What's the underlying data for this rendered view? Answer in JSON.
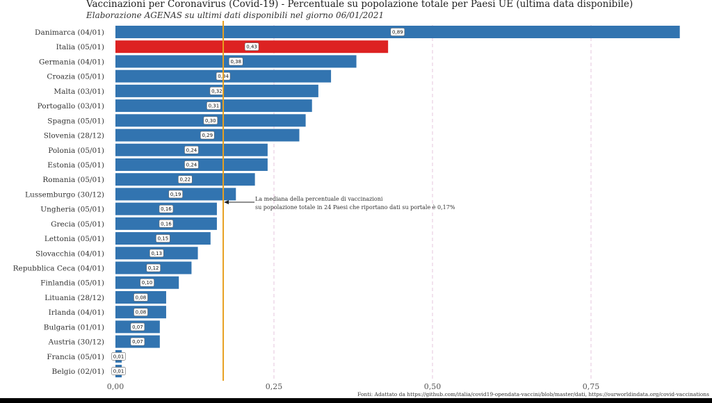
{
  "chart_data": {
    "type": "bar",
    "orientation": "horizontal",
    "title": "Vaccinazioni per Coronavirus (Covid-19) - Percentuale su popolazione totale per Paesi UE (ultima data disponibile)",
    "subtitle": "Elaborazione AGENAS su ultimi dati disponibili nel giorno 06/01/2021",
    "categories": [
      "Danimarca (04/01)",
      "Italia (05/01)",
      "Germania (04/01)",
      "Croazia (05/01)",
      "Malta (03/01)",
      "Portogallo (03/01)",
      "Spagna (05/01)",
      "Slovenia (28/12)",
      "Polonia (05/01)",
      "Estonia (05/01)",
      "Romania (05/01)",
      "Lussemburgo (30/12)",
      "Ungheria (05/01)",
      "Grecia (05/01)",
      "Lettonia (05/01)",
      "Slovacchia (04/01)",
      "Repubblica Ceca (04/01)",
      "Finlandia (05/01)",
      "Lituania (28/12)",
      "Irlanda (04/01)",
      "Bulgaria (01/01)",
      "Austria (30/12)",
      "Francia (05/01)",
      "Belgio (02/01)"
    ],
    "values": [
      0.89,
      0.43,
      0.38,
      0.34,
      0.32,
      0.31,
      0.3,
      0.29,
      0.24,
      0.24,
      0.22,
      0.19,
      0.16,
      0.16,
      0.15,
      0.13,
      0.12,
      0.1,
      0.08,
      0.08,
      0.07,
      0.07,
      0.01,
      0.01
    ],
    "data_labels": [
      "0,89",
      "0,43",
      "0,38",
      "0,34",
      "0,32",
      "0,31",
      "0,30",
      "0,29",
      "0,24",
      "0,24",
      "0,22",
      "0,19",
      "0,16",
      "0,16",
      "0,15",
      "0,13",
      "0,12",
      "0,10",
      "0,08",
      "0,08",
      "0,07",
      "0,07",
      "0,01",
      "0,01"
    ],
    "highlight_index": 1,
    "xlim": [
      0,
      0.9
    ],
    "xticks": [
      0,
      0.25,
      0.5,
      0.75
    ],
    "xtick_labels": [
      "0,00",
      "0,25",
      "0,50",
      "0,75"
    ],
    "grid": "vertical dashed",
    "median": 0.17,
    "annotation": [
      "La mediana della percentuale di vaccinazioni",
      "su popolazione totale in 24 Paesi che riportano dati su portale è 0,17%"
    ],
    "colors": {
      "bar": "#3274b0",
      "highlight": "#dd2222",
      "median": "#e8a020",
      "grid": "#e4c4dc"
    }
  },
  "footer": "Fonti: Adattato da https://github.com/italia/covid19-opendata-vaccini/blob/master/dati, https://ourworldindata.org/covid-vaccinations"
}
